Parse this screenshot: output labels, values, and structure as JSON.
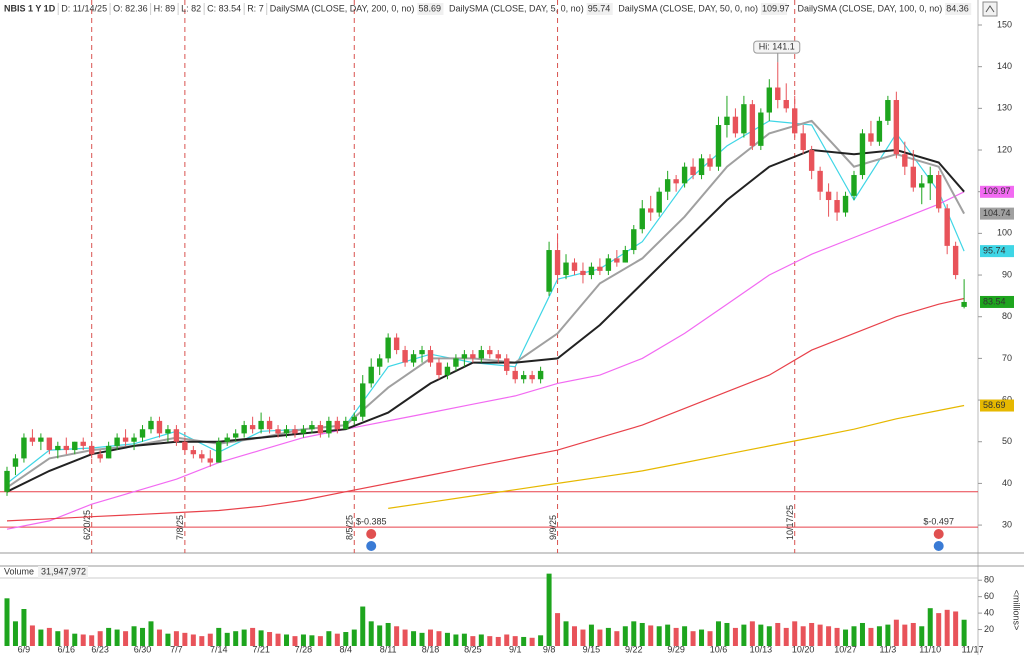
{
  "chart_data": {
    "type": "candlestick",
    "header": [
      "NBIS 1 Y 1D",
      "D: 11/14/25",
      "O: 82.36",
      "H: 89",
      "L: 82",
      "C: 83.54",
      "R: 7"
    ],
    "categories": [
      null,
      null,
      "6/9",
      null,
      null,
      null,
      null,
      "6/16",
      null,
      null,
      null,
      "6/23",
      null,
      null,
      null,
      null,
      "6/30",
      null,
      null,
      null,
      "7/7",
      null,
      null,
      null,
      null,
      "7/14",
      null,
      null,
      null,
      null,
      "7/21",
      null,
      null,
      null,
      null,
      "7/28",
      null,
      null,
      null,
      null,
      "8/4",
      null,
      null,
      null,
      null,
      "8/11",
      null,
      null,
      null,
      null,
      "8/18",
      null,
      null,
      null,
      null,
      "8/25",
      null,
      null,
      null,
      null,
      "9/1",
      null,
      null,
      null,
      "9/8",
      null,
      null,
      null,
      null,
      "9/15",
      null,
      null,
      null,
      null,
      "9/22",
      null,
      null,
      null,
      null,
      "9/29",
      null,
      null,
      null,
      null,
      "10/6",
      null,
      null,
      null,
      null,
      "10/13",
      null,
      null,
      null,
      null,
      "10/20",
      null,
      null,
      null,
      null,
      "10/27",
      null,
      null,
      null,
      null,
      "11/3",
      null,
      null,
      null,
      null,
      "11/10",
      null,
      null,
      null,
      null,
      "11/17"
    ],
    "candles": {
      "up_color": "#1ea51e",
      "down_color": "#e8535a",
      "last_label": "83.54",
      "open": [
        38,
        44,
        46,
        51,
        50,
        51,
        48,
        49,
        48,
        50,
        49,
        47,
        46,
        49,
        51,
        50,
        51,
        53,
        55,
        52,
        53,
        50,
        48,
        47,
        46,
        45,
        50,
        51,
        52,
        54,
        53,
        55,
        53,
        52,
        53,
        52,
        53,
        54,
        52,
        55,
        53,
        55,
        56,
        64,
        68,
        70,
        75,
        72,
        69,
        71,
        72,
        69,
        66,
        68,
        70,
        71,
        70,
        72,
        71,
        70,
        67,
        65,
        66,
        65,
        86,
        96,
        90,
        93,
        91,
        90,
        92,
        91,
        94,
        93,
        96,
        101,
        106,
        105,
        110,
        113,
        112,
        116,
        114,
        118,
        116,
        126,
        128,
        124,
        131,
        121,
        129,
        135,
        132,
        130,
        124,
        120,
        115,
        110,
        108,
        105,
        109,
        114,
        124,
        122,
        127,
        132,
        119,
        116,
        111,
        112,
        114,
        106,
        97,
        82.36,
        null
      ],
      "high": [
        44,
        47,
        52,
        53,
        52,
        51,
        50,
        51,
        50,
        51,
        50,
        48,
        50,
        52,
        53,
        52,
        54,
        56,
        56,
        54,
        54,
        51,
        49,
        48,
        48,
        51,
        52,
        53,
        55,
        56,
        57,
        56,
        54,
        54,
        54,
        54,
        55,
        55,
        56,
        56,
        56,
        57,
        66,
        70,
        71,
        76,
        76,
        73,
        72,
        73,
        73,
        70,
        69,
        71,
        72,
        72,
        73,
        73,
        72,
        71,
        68,
        67,
        67,
        68,
        98,
        100,
        95,
        94,
        93,
        93,
        94,
        95,
        96,
        97,
        102,
        108,
        109,
        111,
        115,
        114,
        117,
        118,
        119,
        119,
        128,
        133,
        130,
        133,
        132,
        130,
        137,
        141.1,
        136,
        133,
        126,
        121,
        116,
        112,
        110,
        110,
        115,
        125,
        127,
        128,
        133,
        134,
        122,
        120,
        114,
        116,
        115,
        107,
        98,
        89,
        null
      ],
      "low": [
        37,
        42,
        45,
        49,
        48,
        47,
        46,
        47,
        47,
        48,
        46,
        45,
        46,
        48,
        49,
        48,
        50,
        52,
        51,
        50,
        49,
        47,
        46,
        45,
        44,
        45,
        49,
        50,
        51,
        52,
        52,
        52,
        51,
        51,
        51,
        51,
        52,
        51,
        51,
        52,
        53,
        54,
        55,
        63,
        66,
        69,
        71,
        68,
        68,
        69,
        68,
        65,
        65,
        67,
        68,
        69,
        69,
        70,
        69,
        66,
        64,
        64,
        64,
        64,
        85,
        88,
        89,
        90,
        88,
        89,
        90,
        90,
        92,
        93,
        95,
        100,
        103,
        104,
        108,
        110,
        111,
        113,
        113,
        115,
        115,
        123,
        123,
        123,
        120,
        120,
        127,
        130,
        129,
        123,
        119,
        113,
        108,
        104,
        103,
        104,
        108,
        113,
        121,
        121,
        126,
        118,
        114,
        110,
        107,
        108,
        105,
        95,
        89,
        82,
        null
      ],
      "close": [
        43,
        46,
        51,
        50,
        51,
        48,
        49,
        48,
        50,
        49,
        47,
        46,
        49,
        51,
        50,
        51,
        53,
        55,
        52,
        53,
        50,
        48,
        47,
        46,
        45,
        50,
        51,
        52,
        54,
        53,
        55,
        53,
        52,
        53,
        52,
        53,
        54,
        52,
        55,
        53,
        55,
        56,
        64,
        68,
        70,
        75,
        72,
        69,
        71,
        72,
        69,
        66,
        68,
        70,
        71,
        70,
        72,
        71,
        70,
        67,
        65,
        66,
        65,
        67,
        96,
        90,
        93,
        91,
        90,
        92,
        91,
        94,
        93,
        96,
        101,
        106,
        105,
        110,
        113,
        112,
        116,
        114,
        118,
        116,
        126,
        128,
        124,
        131,
        121,
        129,
        135,
        132,
        130,
        124,
        120,
        115,
        110,
        108,
        105,
        109,
        114,
        124,
        122,
        127,
        132,
        119,
        116,
        111,
        112,
        114,
        106,
        97,
        90,
        83.54,
        null
      ]
    },
    "series": [
      {
        "name": "DailySMA (CLOSE, DAY, 200, 0, no)",
        "color": "#e6b800",
        "last_label": "58.69",
        "x": [
          45,
          50,
          55,
          60,
          65,
          70,
          75,
          80,
          85,
          90,
          95,
          100,
          105,
          110,
          113
        ],
        "values": [
          34,
          35.5,
          37,
          38.5,
          40,
          41.5,
          43,
          45,
          47,
          49,
          51,
          53,
          55.5,
          57.5,
          58.69
        ]
      },
      {
        "name": "DailySMA (CLOSE, DAY, 5, 0, no)",
        "color": "#3fd6e6",
        "last_label": "95.74",
        "x": [
          0,
          5,
          10,
          15,
          20,
          25,
          30,
          35,
          40,
          45,
          50,
          55,
          60,
          65,
          70,
          75,
          80,
          85,
          90,
          95,
          100,
          105,
          110,
          113
        ],
        "values": [
          40,
          48,
          48.5,
          49.5,
          52.5,
          47.5,
          52.5,
          53,
          54,
          68,
          71,
          69,
          68,
          89,
          91.5,
          98,
          112,
          121,
          127,
          126,
          108,
          124,
          110,
          95.74
        ]
      },
      {
        "name": "DailySMA (CLOSE, DAY, 50, 0, no)",
        "color": "#f26af2",
        "last_label": "109.97",
        "x": [
          0,
          5,
          10,
          15,
          20,
          25,
          30,
          35,
          40,
          45,
          50,
          55,
          60,
          65,
          70,
          75,
          80,
          85,
          90,
          95,
          100,
          105,
          110,
          113
        ],
        "values": [
          29,
          31,
          35,
          38,
          41,
          45,
          48,
          51,
          53,
          55,
          57,
          59,
          61,
          64,
          66,
          70,
          76,
          83,
          90,
          95,
          99,
          103,
          107,
          109.97
        ]
      },
      {
        "name": "DailySMA (CLOSE, DAY, 100, 0, no)",
        "color": "#e8414a",
        "last_label": "84.36",
        "x": [
          0,
          5,
          10,
          15,
          20,
          25,
          30,
          35,
          40,
          45,
          50,
          55,
          60,
          65,
          70,
          75,
          80,
          85,
          90,
          95,
          100,
          105,
          110,
          113
        ],
        "values": [
          31,
          31.5,
          32,
          32.5,
          33,
          33.5,
          34.5,
          36,
          38,
          40,
          42,
          44,
          46,
          48,
          51,
          54,
          58,
          62,
          66,
          72,
          76,
          80,
          83,
          84.36
        ]
      },
      {
        "color": "#a0a0a0",
        "last_label": "104.74",
        "x": [
          0,
          5,
          10,
          15,
          20,
          25,
          30,
          35,
          40,
          45,
          50,
          55,
          60,
          65,
          70,
          75,
          80,
          85,
          90,
          95,
          100,
          105,
          110,
          113
        ],
        "values": [
          39,
          46,
          48,
          49,
          51,
          49.5,
          51,
          53,
          54,
          63,
          70,
          70,
          69,
          76,
          88,
          94,
          104,
          116,
          124,
          127,
          116,
          119,
          116,
          104.74
        ]
      },
      {
        "color": "#222222",
        "x": [
          0,
          5,
          10,
          15,
          20,
          25,
          30,
          35,
          40,
          45,
          50,
          55,
          60,
          65,
          70,
          75,
          80,
          85,
          90,
          95,
          100,
          105,
          110,
          113
        ],
        "values": [
          38,
          43,
          47,
          49,
          50,
          50,
          51,
          52,
          53,
          57,
          64,
          69,
          69,
          70,
          78,
          88,
          98,
          108,
          116,
          120,
          119,
          120,
          117,
          110
        ]
      }
    ],
    "hlines": [
      38,
      29.5
    ],
    "hline_color": "#e8414a",
    "events": [
      {
        "label": "6/20/25",
        "index": 10
      },
      {
        "label": "7/8/25",
        "index": 21
      },
      {
        "label": "8/5/25",
        "index": 41
      },
      {
        "label": "9/9/25",
        "index": 65
      },
      {
        "label": "10/17/25",
        "index": 93
      }
    ],
    "earnings": [
      {
        "label": "$-0.385",
        "index": 43
      },
      {
        "label": "$-0.497",
        "index": 110
      }
    ],
    "hi_label": {
      "text": "Hi: 141.1",
      "index": 91
    },
    "ylim": [
      23.3,
      156
    ],
    "yticks": [
      30,
      40,
      50,
      60,
      70,
      80,
      90,
      100,
      110,
      120,
      130,
      140,
      150
    ],
    "volume": {
      "title": "Volume",
      "last_label": "31,947,972",
      "unit": "<millions>",
      "ylim": [
        0,
        90
      ],
      "yticks": [
        20,
        40,
        60,
        80
      ],
      "values": [
        58,
        30,
        45,
        25,
        20,
        22,
        18,
        20,
        15,
        14,
        13,
        18,
        22,
        20,
        18,
        24,
        22,
        30,
        20,
        15,
        18,
        16,
        14,
        12,
        15,
        22,
        16,
        18,
        20,
        22,
        19,
        17,
        15,
        14,
        12,
        14,
        13,
        12,
        18,
        15,
        17,
        20,
        48,
        30,
        25,
        28,
        24,
        20,
        18,
        16,
        20,
        18,
        16,
        14,
        15,
        12,
        14,
        12,
        11,
        14,
        12,
        11,
        10,
        13,
        88,
        40,
        30,
        24,
        20,
        26,
        20,
        22,
        18,
        24,
        30,
        28,
        25,
        24,
        26,
        22,
        24,
        18,
        20,
        18,
        30,
        28,
        22,
        26,
        30,
        26,
        24,
        28,
        22,
        30,
        24,
        28,
        26,
        24,
        22,
        20,
        24,
        28,
        22,
        24,
        26,
        32,
        26,
        28,
        24,
        46,
        40,
        44,
        42,
        31.947972,
        null
      ]
    }
  }
}
